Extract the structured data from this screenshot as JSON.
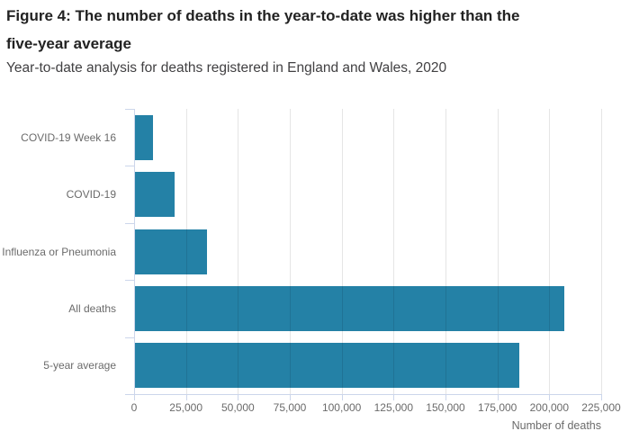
{
  "figure": {
    "title": "Figure 4: The number of deaths in the year-to-date was higher than the five-year average",
    "subtitle": "Year-to-date analysis for deaths registered in England and Wales, 2020"
  },
  "chart_data": {
    "type": "bar",
    "orientation": "horizontal",
    "title": "Figure 4: The number of deaths in the year-to-date was higher than the five-year average",
    "subtitle": "Year-to-date analysis for deaths registered in England and Wales, 2020",
    "categories": [
      "COVID-19 Week 16",
      "COVID-19",
      "Influenza or Pneumonia",
      "All deaths",
      "5-year average"
    ],
    "values": [
      8800,
      19000,
      34500,
      207000,
      185000
    ],
    "xlabel": "Number of deaths",
    "ylabel": "",
    "xlim": [
      0,
      225000
    ],
    "xticks": [
      0,
      25000,
      50000,
      75000,
      100000,
      125000,
      150000,
      175000,
      200000,
      225000
    ],
    "xtick_labels": [
      "0",
      "25,000",
      "50,000",
      "75,000",
      "100,000",
      "125,000",
      "150,000",
      "175,000",
      "200,000",
      "225,000"
    ],
    "grid": true,
    "legend": false
  },
  "colors": {
    "bar": "#2481a6",
    "gridline": "rgba(0,0,0,0.10)",
    "axis": "#ccd6eb",
    "title": "#222222",
    "subtitle": "#414042",
    "labels": "#6b6b6b"
  }
}
